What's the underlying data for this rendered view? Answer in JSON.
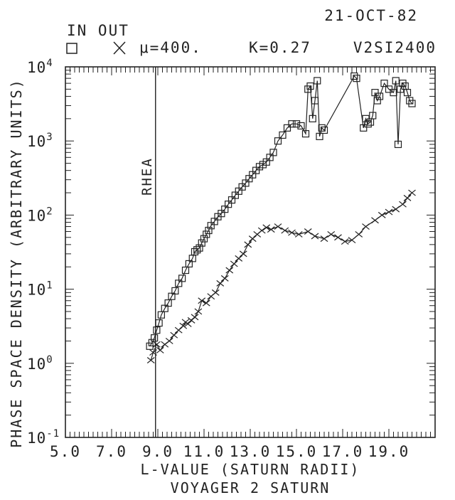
{
  "header": {
    "date": "21-OCT-82",
    "legend_title": "IN OUT",
    "mu": "μ=400.",
    "k_value": "K=0.27",
    "run_id": "V2SI2400"
  },
  "chart_data": {
    "type": "scatter",
    "ylabel": "PHASE SPACE DENSITY (ARBITRARY UNITS)",
    "xlabel": "L-VALUE (SATURN RADII)",
    "subtitle": "VOYAGER 2 SATURN",
    "xlim": [
      5.0,
      21.0
    ],
    "ylim": [
      0.1,
      10000
    ],
    "yscale": "log",
    "x_ticks": [
      "5.0",
      "7.0",
      "9.0",
      "11.0",
      "13.0",
      "15.0",
      "17.0",
      "19.0"
    ],
    "y_ticks": [
      {
        "base": "10",
        "exp": "-1"
      },
      {
        "base": "10",
        "exp": "0"
      },
      {
        "base": "10",
        "exp": "1"
      },
      {
        "base": "10",
        "exp": "2"
      },
      {
        "base": "10",
        "exp": "3"
      },
      {
        "base": "10",
        "exp": "4"
      }
    ],
    "annotation": {
      "text": "RHEA",
      "x": 8.9
    },
    "series": [
      {
        "name": "IN",
        "marker": "square",
        "x": [
          8.65,
          8.75,
          8.85,
          8.95,
          9.05,
          9.15,
          9.3,
          9.45,
          9.6,
          9.75,
          9.9,
          10.05,
          10.2,
          10.35,
          10.5,
          10.6,
          10.7,
          10.8,
          10.9,
          11.0,
          11.1,
          11.2,
          11.3,
          11.45,
          11.6,
          11.75,
          11.9,
          12.05,
          12.2,
          12.35,
          12.5,
          12.65,
          12.8,
          12.95,
          13.1,
          13.25,
          13.4,
          13.55,
          13.7,
          13.85,
          14.0,
          14.2,
          14.4,
          14.6,
          14.8,
          15.0,
          15.2,
          15.4,
          15.5,
          15.6,
          15.7,
          15.8,
          15.9,
          16.0,
          16.1,
          16.2,
          17.5,
          17.6,
          17.9,
          18.0,
          18.1,
          18.2,
          18.3,
          18.4,
          18.5,
          18.6,
          18.8,
          19.0,
          19.2,
          19.3,
          19.4,
          19.5,
          19.6,
          19.7,
          19.8,
          19.9,
          20.0
        ],
        "y": [
          1.7,
          1.9,
          2.2,
          2.8,
          3.5,
          4.5,
          5.5,
          6.5,
          8,
          9.5,
          12,
          14,
          18,
          22,
          26,
          32,
          34,
          36,
          42,
          48,
          55,
          62,
          72,
          82,
          95,
          105,
          120,
          140,
          160,
          185,
          210,
          240,
          270,
          310,
          350,
          400,
          450,
          480,
          520,
          600,
          700,
          1000,
          1200,
          1500,
          1700,
          1700,
          1600,
          1250,
          5000,
          5500,
          2000,
          3500,
          6500,
          1150,
          1500,
          1400,
          7500,
          7000,
          1500,
          2000,
          1700,
          1800,
          2200,
          4500,
          3500,
          4000,
          6000,
          5000,
          4500,
          6500,
          900,
          5000,
          6000,
          5500,
          4500,
          3500,
          3200
        ]
      },
      {
        "name": "OUT",
        "marker": "cross",
        "x": [
          8.7,
          8.8,
          8.95,
          9.1,
          9.3,
          9.5,
          9.7,
          9.9,
          10.1,
          10.2,
          10.3,
          10.45,
          10.6,
          10.75,
          10.9,
          11.1,
          11.3,
          11.5,
          11.7,
          11.9,
          12.1,
          12.3,
          12.5,
          12.7,
          12.9,
          13.1,
          13.3,
          13.5,
          13.7,
          13.9,
          14.2,
          14.5,
          14.8,
          15.1,
          15.5,
          15.8,
          16.2,
          16.5,
          16.8,
          17.1,
          17.4,
          17.7,
          18.0,
          18.4,
          18.7,
          19.0,
          19.3,
          19.6,
          19.8,
          20.0
        ],
        "y": [
          1.1,
          1.4,
          1.8,
          1.5,
          1.8,
          2.0,
          2.4,
          2.8,
          3.2,
          3.6,
          3.4,
          3.8,
          4.2,
          5.0,
          7.0,
          6.5,
          8.0,
          9.0,
          12,
          14,
          18,
          22,
          26,
          30,
          40,
          48,
          55,
          62,
          68,
          64,
          70,
          62,
          58,
          55,
          60,
          52,
          48,
          55,
          50,
          44,
          46,
          55,
          70,
          85,
          100,
          110,
          120,
          140,
          170,
          200
        ]
      }
    ],
    "grid": false,
    "legend": "top-left",
    "color": "#222222"
  }
}
